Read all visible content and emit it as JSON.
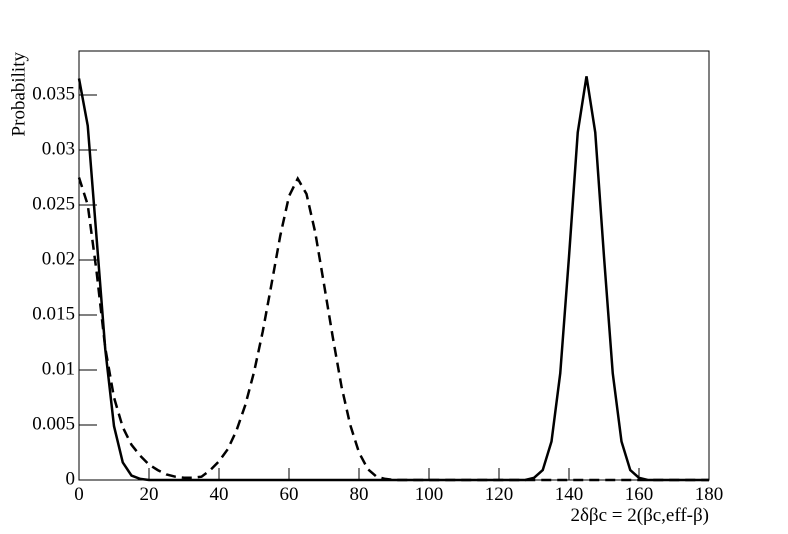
{
  "chart_data": {
    "type": "line",
    "ylabel": "Probability",
    "xlabel": "2δβc = 2(βc,eff-β)",
    "x": [
      0,
      2.5,
      5,
      7.5,
      10,
      12.5,
      15,
      17.5,
      20,
      22.5,
      25,
      27.5,
      30,
      32.5,
      35,
      37.5,
      40,
      42.5,
      45,
      47.5,
      50,
      52.5,
      55,
      57.5,
      60,
      62.5,
      65,
      67.5,
      70,
      72.5,
      75,
      77.5,
      80,
      82.5,
      85,
      87.5,
      90,
      92.5,
      95,
      97.5,
      100,
      102.5,
      105,
      107.5,
      110,
      112.5,
      115,
      117.5,
      120,
      122.5,
      125,
      127.5,
      130,
      132.5,
      135,
      137.5,
      140,
      142.5,
      145,
      147.5,
      150,
      152.5,
      155,
      157.5,
      160,
      162.5,
      165,
      167.5,
      170,
      172.5,
      175,
      177.5,
      180
    ],
    "series": [
      {
        "color": "#000000",
        "dashed": false,
        "values": [
          0.0365,
          0.0322,
          0.0221,
          0.0119,
          0.0049,
          0.0016,
          0.0004,
          0.0001,
          0,
          0,
          0,
          0,
          0,
          0,
          0,
          0,
          0,
          0,
          0,
          0,
          0,
          0,
          0,
          0,
          0,
          0,
          0,
          0,
          0,
          0,
          0,
          0,
          0,
          0,
          0,
          0,
          0,
          0,
          0,
          0,
          0,
          0,
          0,
          0,
          0,
          0,
          0,
          0,
          0,
          0,
          0,
          0,
          0.0002,
          0.0009,
          0.0035,
          0.0097,
          0.0203,
          0.0316,
          0.0367,
          0.0316,
          0.0203,
          0.0097,
          0.0035,
          0.0009,
          0.0002,
          0,
          0,
          0,
          0,
          0,
          0,
          0,
          0
        ]
      },
      {
        "color": "#000000",
        "dashed": true,
        "values": [
          0.0275,
          0.025,
          0.019,
          0.012,
          0.0075,
          0.0048,
          0.0032,
          0.0022,
          0.0014,
          0.0009,
          0.0005,
          0.0003,
          0.0002,
          0.0002,
          0.0003,
          0.0009,
          0.0017,
          0.0028,
          0.0045,
          0.0068,
          0.0098,
          0.0135,
          0.0178,
          0.0222,
          0.0258,
          0.0274,
          0.026,
          0.0225,
          0.0178,
          0.013,
          0.0085,
          0.005,
          0.0025,
          0.001,
          0.0003,
          0.0001,
          0,
          0,
          0,
          0,
          0,
          0,
          0,
          0,
          0,
          0,
          0,
          0,
          0,
          0,
          0,
          0,
          0,
          0,
          0,
          0,
          0,
          0,
          0,
          0,
          0,
          0,
          0,
          0,
          0,
          0,
          0,
          0,
          0,
          0,
          0,
          0,
          0
        ]
      }
    ],
    "xlim": [
      0,
      180
    ],
    "xticks": [
      0,
      20,
      40,
      60,
      80,
      100,
      120,
      140,
      160,
      180
    ],
    "ylim": [
      0,
      0.039
    ],
    "yticks": [
      0,
      0.005,
      0.01,
      0.015,
      0.02,
      0.025,
      0.03,
      0.035
    ]
  }
}
